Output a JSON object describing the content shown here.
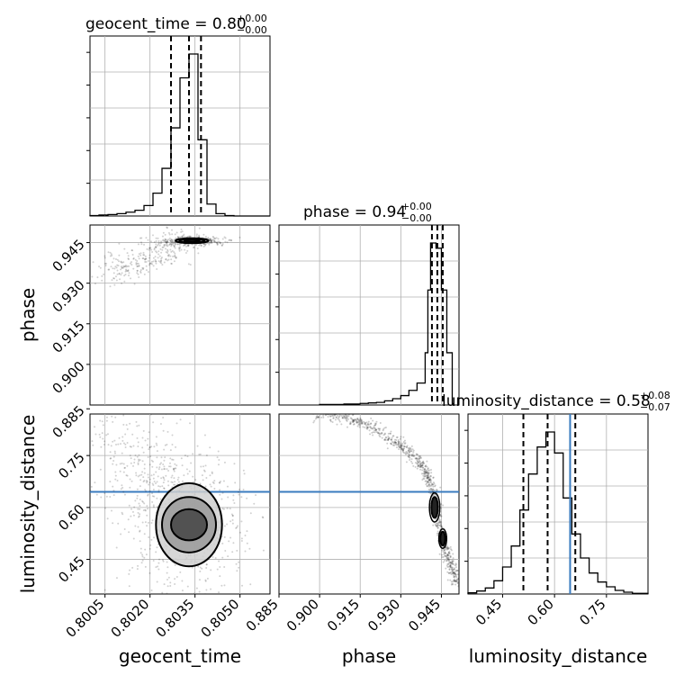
{
  "chart_data": {
    "type": "corner",
    "parameters": [
      "geocent_time",
      "phase",
      "luminosity_distance"
    ],
    "ranges": {
      "geocent_time": [
        0.8,
        0.806
      ],
      "phase": [
        0.885,
        0.9515
      ],
      "luminosity_distance": [
        0.35,
        0.87
      ]
    },
    "ticks": {
      "geocent_time": [
        "0.8005",
        "0.8020",
        "0.8035",
        "0.8050"
      ],
      "phase": [
        "0.885",
        "0.900",
        "0.915",
        "0.930",
        "0.945"
      ],
      "luminosity_distance": [
        "0.45",
        "0.60",
        "0.75"
      ]
    },
    "axis_ticks_left": {
      "phase": [
        "0.900",
        "0.915",
        "0.930",
        "0.945"
      ],
      "luminosity_distance": [
        "0.45",
        "0.60",
        "0.75",
        "0.885"
      ]
    },
    "titles": {
      "geocent_time": {
        "name": "geocent_time",
        "value": "0.80",
        "plus": "+0.00",
        "minus": "−0.00"
      },
      "phase": {
        "name": "phase",
        "value": "0.94",
        "plus": "+0.00",
        "minus": "−0.00"
      },
      "luminosity_distance": {
        "name": "luminosity_distance",
        "value": "0.58",
        "plus": "+0.08",
        "minus": "−0.07"
      }
    },
    "quantiles": {
      "geocent_time": [
        0.8027,
        0.8033,
        0.8037
      ],
      "phase": [
        0.9415,
        0.9435,
        0.9455
      ],
      "luminosity_distance": [
        0.51,
        0.58,
        0.66
      ]
    },
    "injection": {
      "luminosity_distance": 0.645
    },
    "histograms": {
      "geocent_time": {
        "edges": [
          0.8,
          0.8003,
          0.8006,
          0.8009,
          0.8012,
          0.8015,
          0.8018,
          0.8021,
          0.8024,
          0.8027,
          0.803,
          0.8033,
          0.8036,
          0.8039,
          0.8042,
          0.8045,
          0.8048,
          0.8051,
          0.8054,
          0.8057,
          0.806
        ],
        "counts": [
          1,
          2,
          3,
          5,
          8,
          12,
          22,
          48,
          100,
          185,
          290,
          340,
          160,
          25,
          5,
          1,
          0,
          0,
          0,
          0
        ]
      },
      "phase": {
        "edges": [
          0.9,
          0.903,
          0.906,
          0.909,
          0.912,
          0.915,
          0.918,
          0.921,
          0.924,
          0.927,
          0.93,
          0.933,
          0.936,
          0.939,
          0.94,
          0.941,
          0.943,
          0.945,
          0.947,
          0.949
        ],
        "counts": [
          1,
          1,
          1,
          2,
          2,
          3,
          4,
          5,
          8,
          12,
          18,
          28,
          42,
          100,
          220,
          310,
          300,
          220,
          100
        ]
      },
      "luminosity_distance": {
        "edges": [
          0.35,
          0.375,
          0.4,
          0.425,
          0.45,
          0.475,
          0.5,
          0.525,
          0.55,
          0.575,
          0.6,
          0.625,
          0.65,
          0.675,
          0.7,
          0.725,
          0.75,
          0.775,
          0.8,
          0.825,
          0.85,
          0.87
        ],
        "counts": [
          2,
          5,
          10,
          22,
          45,
          80,
          140,
          200,
          245,
          270,
          235,
          160,
          100,
          60,
          35,
          20,
          12,
          6,
          3,
          1,
          1
        ]
      }
    },
    "contours_2d": {
      "phase_vs_geocent_time": {
        "center": [
          0.8034,
          0.9457
        ],
        "levels": [
          {
            "rx": 0.00055,
            "ry": 0.0009,
            "fill": "#a7a7a7"
          },
          {
            "rx": 0.00042,
            "ry": 0.0007,
            "fill": "#6a6a6a"
          },
          {
            "rx": 0.00025,
            "ry": 0.0004,
            "fill": "#2a2a2a"
          }
        ],
        "tail_start": [
          0.8008,
          0.9345
        ],
        "tail_spread": [
          0.0008,
          0.006
        ]
      },
      "luminosity_distance_vs_geocent_time": {
        "center": [
          0.8033,
          0.55
        ],
        "levels": [
          {
            "rx": 0.0011,
            "ry": 0.12,
            "fill": "#d0d0d0"
          },
          {
            "rx": 0.0009,
            "ry": 0.08,
            "fill": "#9a9a9a"
          },
          {
            "rx": 0.0006,
            "ry": 0.045,
            "fill": "#444444"
          }
        ],
        "tail_start": [
          0.8005,
          0.85
        ],
        "tail_spread": [
          0.0015,
          0.15
        ]
      },
      "luminosity_distance_vs_phase": {
        "curve": [
          [
            0.898,
            0.87
          ],
          [
            0.91,
            0.86
          ],
          [
            0.92,
            0.83
          ],
          [
            0.93,
            0.78
          ],
          [
            0.937,
            0.73
          ],
          [
            0.941,
            0.67
          ],
          [
            0.943,
            0.6
          ],
          [
            0.945,
            0.52
          ],
          [
            0.948,
            0.44
          ],
          [
            0.951,
            0.38
          ]
        ],
        "blobs": [
          {
            "x": 0.9425,
            "y": 0.6,
            "rx": 0.0012,
            "ry": 0.03
          },
          {
            "x": 0.9455,
            "y": 0.51,
            "rx": 0.0009,
            "ry": 0.02
          }
        ]
      }
    }
  }
}
